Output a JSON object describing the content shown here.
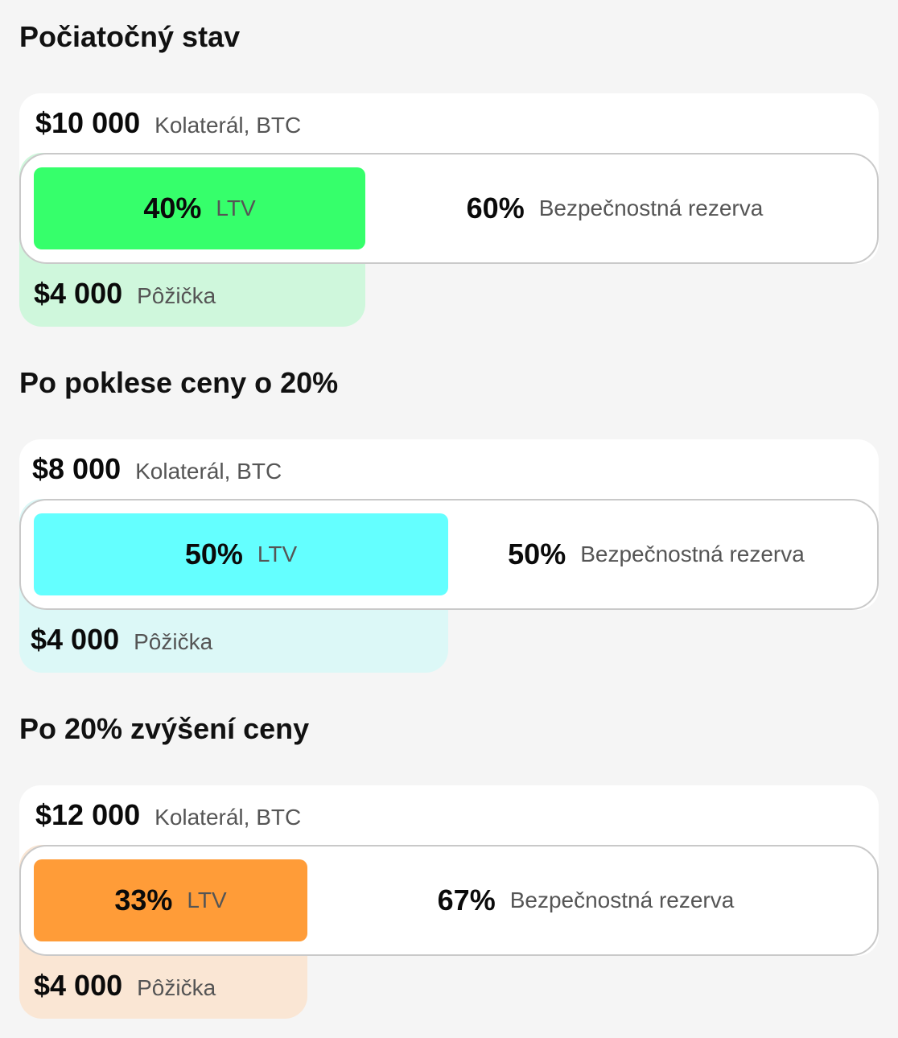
{
  "colors": {
    "page_background": "#f5f5f5",
    "card_background": "#ffffff",
    "bar_border": "#c9c9c9",
    "label_text": "#555555",
    "value_text": "#0a0a0a"
  },
  "scenarios": [
    {
      "title": "Počiatočný stav",
      "collateral_value": "$10 000",
      "collateral_label": "Kolaterál, BTC",
      "ltv_value": "40%",
      "ltv_label": "LTV",
      "ltv_fraction": 0.4,
      "reserve_value": "60%",
      "reserve_label": "Bezpečnostná rezerva",
      "loan_value": "$4 000",
      "loan_label": "Pôžička",
      "ltv_color": "#36ff6b",
      "loan_color": "#cff7dc"
    },
    {
      "title": "Po poklese ceny o 20%",
      "collateral_value": "$8 000",
      "collateral_label": "Kolaterál, BTC",
      "ltv_value": "50%",
      "ltv_label": "LTV",
      "ltv_fraction": 0.5,
      "reserve_value": "50%",
      "reserve_label": "Bezpečnostná rezerva",
      "loan_value": "$4 000",
      "loan_label": "Pôžička",
      "ltv_color": "#64ffff",
      "loan_color": "#dcf8f7"
    },
    {
      "title": "Po 20% zvýšení ceny",
      "collateral_value": "$12 000",
      "collateral_label": "Kolaterál, BTC",
      "ltv_value": "33%",
      "ltv_label": "LTV",
      "ltv_fraction": 0.33,
      "reserve_value": "67%",
      "reserve_label": "Bezpečnostná rezerva",
      "loan_value": "$4 000",
      "loan_label": "Pôžička",
      "ltv_color": "#ff9c38",
      "loan_color": "#fae6d4"
    }
  ]
}
